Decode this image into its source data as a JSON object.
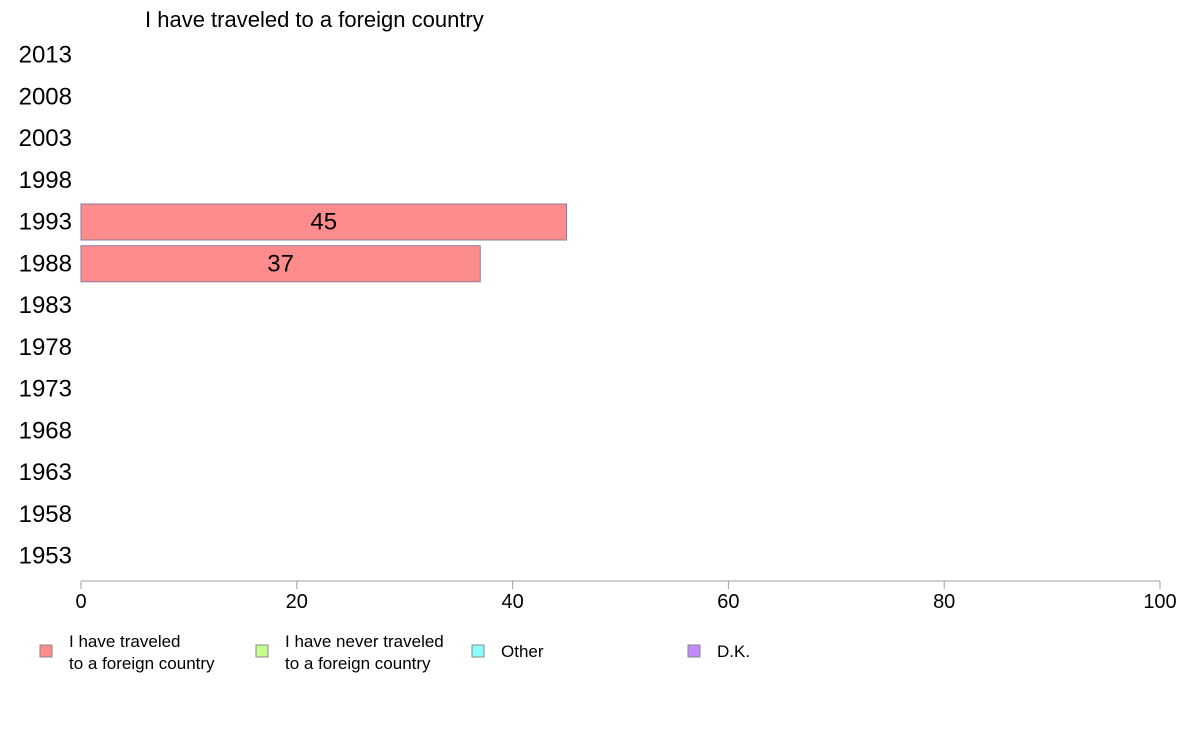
{
  "chart_data": {
    "type": "bar",
    "orientation": "horizontal",
    "title": "I have traveled to a foreign country",
    "categories": [
      "2013",
      "2008",
      "2003",
      "1998",
      "1993",
      "1988",
      "1983",
      "1978",
      "1973",
      "1968",
      "1963",
      "1958",
      "1953"
    ],
    "series": [
      {
        "name": "I have traveled to a foreign country",
        "color": "#ff8c8c",
        "values": [
          null,
          null,
          null,
          null,
          45,
          37,
          null,
          null,
          null,
          null,
          null,
          null,
          null
        ]
      }
    ],
    "xlim": [
      0,
      100
    ],
    "xticks": [
      "0",
      "20",
      "40",
      "60",
      "80",
      "100"
    ],
    "grid": false,
    "legend_position": "bottom",
    "legend": [
      {
        "lines": [
          "I have traveled",
          "to a foreign country"
        ],
        "color": "#ff8c8c"
      },
      {
        "lines": [
          "I have never traveled",
          "to a foreign country"
        ],
        "color": "#c8ff8c"
      },
      {
        "lines": [
          "Other"
        ],
        "color": "#8cffff"
      },
      {
        "lines": [
          "D.K."
        ],
        "color": "#c08cff"
      }
    ]
  }
}
